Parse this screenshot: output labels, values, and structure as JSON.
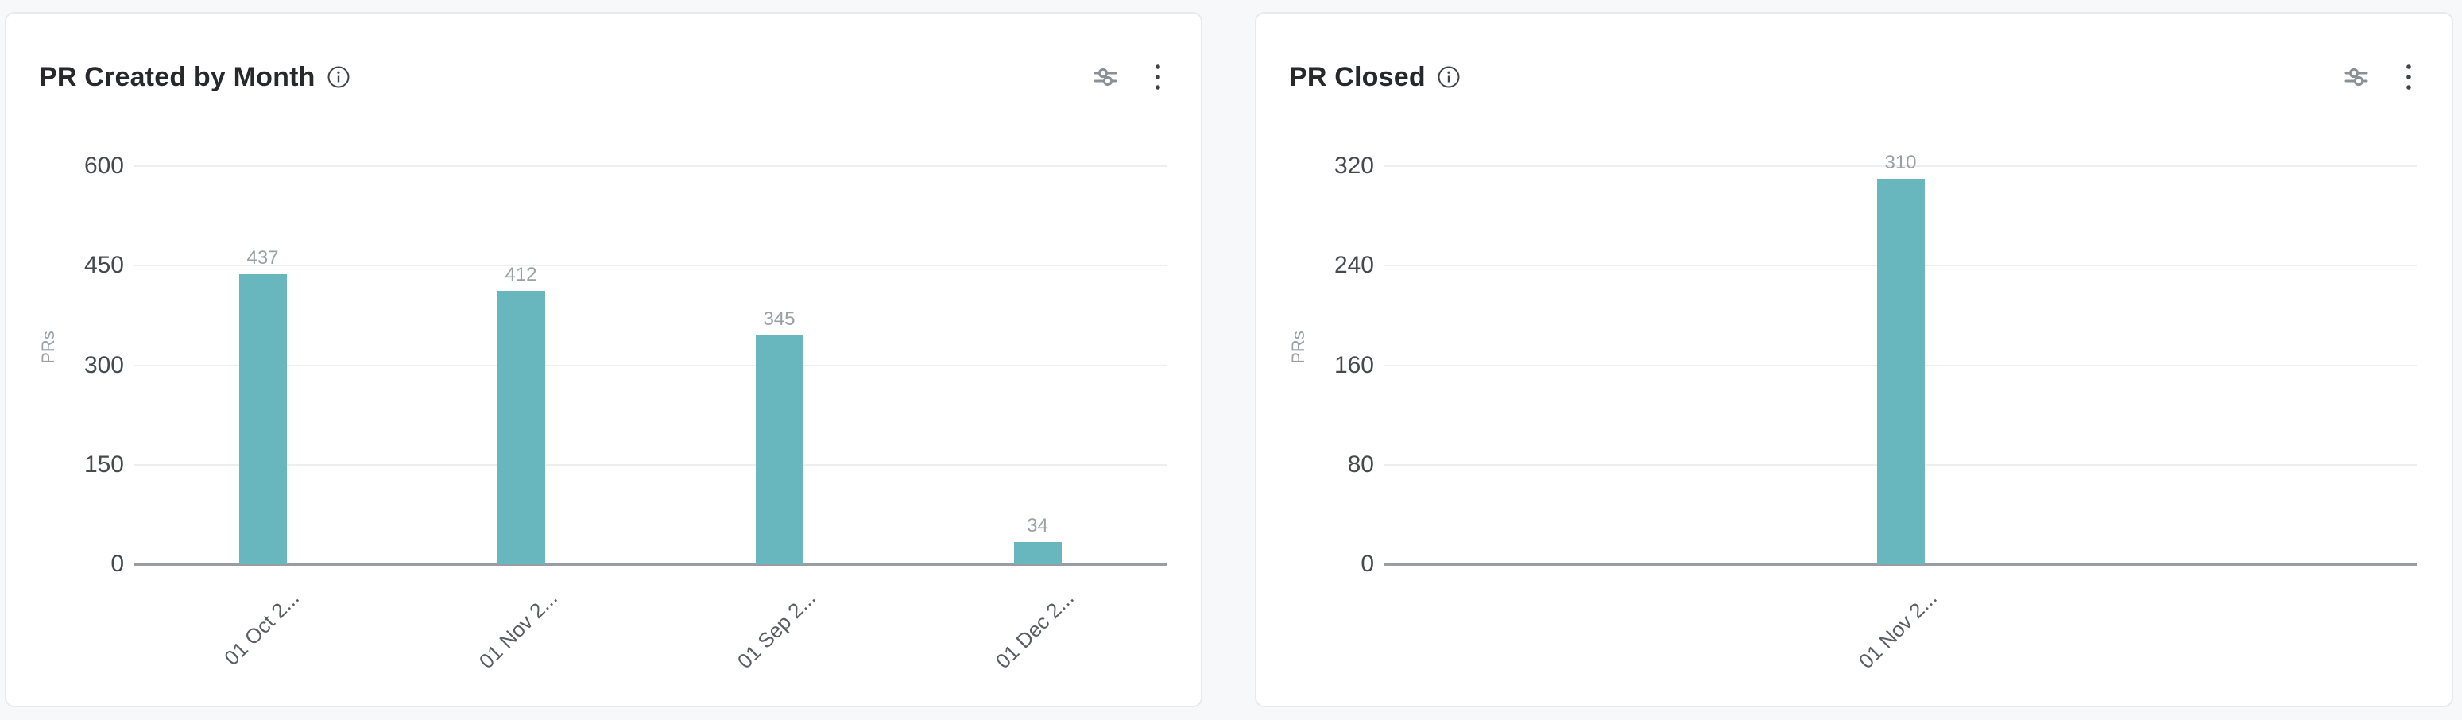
{
  "page": {
    "background_color": "#f7f8fa"
  },
  "colors": {
    "bar": "#69b7be",
    "grid_line": "#edeef0",
    "axis_line": "#989da4",
    "y_tick_label": "#46494e",
    "value_label": "#9aa0a6",
    "x_tick_label": "#5a5e64",
    "title": "#26282b",
    "icon": "#8b9097",
    "card_background": "#ffffff",
    "card_border": "#e7e9ed"
  },
  "cards": [
    {
      "title": "PR Created by Month",
      "icons": {
        "info": "info-icon",
        "filter": "filter-sliders-icon",
        "menu": "kebab-menu-icon"
      }
    },
    {
      "title": "PR Closed",
      "icons": {
        "info": "info-icon",
        "filter": "filter-sliders-icon",
        "menu": "kebab-menu-icon"
      }
    }
  ],
  "chart_data": [
    {
      "type": "bar",
      "title": "PR Created by Month",
      "ylabel": "PRs",
      "xlabel": "",
      "categories": [
        "01 Oct 2...",
        "01 Nov 2...",
        "01 Sep 2...",
        "01 Dec 2..."
      ],
      "values": [
        437,
        412,
        345,
        34
      ],
      "value_labels": [
        "437",
        "412",
        "345",
        "34"
      ],
      "yticks": [
        0,
        150,
        300,
        450,
        600
      ],
      "ylim": [
        0,
        600
      ],
      "grid": true,
      "legend": false,
      "bar_color": "#69b7be",
      "x_tick_rotation_deg": -45
    },
    {
      "type": "bar",
      "title": "PR Closed",
      "ylabel": "PRs",
      "xlabel": "",
      "categories": [
        "01 Nov 2..."
      ],
      "values": [
        310
      ],
      "value_labels": [
        "310"
      ],
      "yticks": [
        0,
        80,
        160,
        240,
        320
      ],
      "ylim": [
        0,
        320
      ],
      "grid": true,
      "legend": false,
      "bar_color": "#69b7be",
      "x_tick_rotation_deg": -45
    }
  ]
}
